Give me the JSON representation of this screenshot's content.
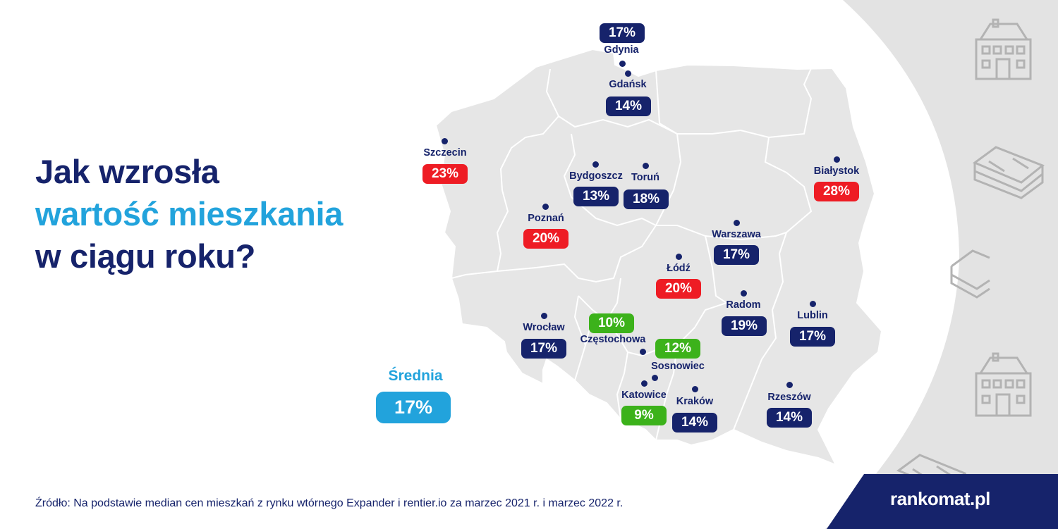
{
  "title": {
    "line1": "Jak wzrosła",
    "line2": "wartość mieszkania",
    "line3": "w ciągu roku?"
  },
  "average": {
    "label": "Średnia",
    "value": "17%"
  },
  "cities": [
    {
      "name": "Gdynia",
      "value": "17%",
      "category": "navy"
    },
    {
      "name": "Gdańsk",
      "value": "14%",
      "category": "navy"
    },
    {
      "name": "Szczecin",
      "value": "23%",
      "category": "red"
    },
    {
      "name": "Bydgoszcz",
      "value": "13%",
      "category": "navy"
    },
    {
      "name": "Toruń",
      "value": "18%",
      "category": "navy"
    },
    {
      "name": "Białystok",
      "value": "28%",
      "category": "red"
    },
    {
      "name": "Poznań",
      "value": "20%",
      "category": "red"
    },
    {
      "name": "Warszawa",
      "value": "17%",
      "category": "navy"
    },
    {
      "name": "Łódź",
      "value": "20%",
      "category": "red"
    },
    {
      "name": "Radom",
      "value": "19%",
      "category": "navy"
    },
    {
      "name": "Lublin",
      "value": "17%",
      "category": "navy"
    },
    {
      "name": "Wrocław",
      "value": "17%",
      "category": "navy"
    },
    {
      "name": "Częstochowa",
      "value": "10%",
      "category": "green"
    },
    {
      "name": "Sosnowiec",
      "value": "12%",
      "category": "green"
    },
    {
      "name": "Katowice",
      "value": "9%",
      "category": "green"
    },
    {
      "name": "Kraków",
      "value": "14%",
      "category": "navy"
    },
    {
      "name": "Rzeszów",
      "value": "14%",
      "category": "navy"
    }
  ],
  "source": "Źródło: Na podstawie median cen mieszkań z rynku wtórnego Expander i rentier.io za marzec 2021 r. i marzec 2022 r.",
  "logo": "rankomat.pl",
  "colors": {
    "navy": "#16236b",
    "blue": "#22a3dc",
    "red": "#ee1c24",
    "green": "#3cb21b",
    "map": "#e6e6e6",
    "background_panel": "#e3e3e3"
  },
  "decorations": [
    "house-icon",
    "money-stack-icon",
    "money-stack-icon",
    "money-stack-icon",
    "house-icon",
    "money-stack-icon"
  ]
}
